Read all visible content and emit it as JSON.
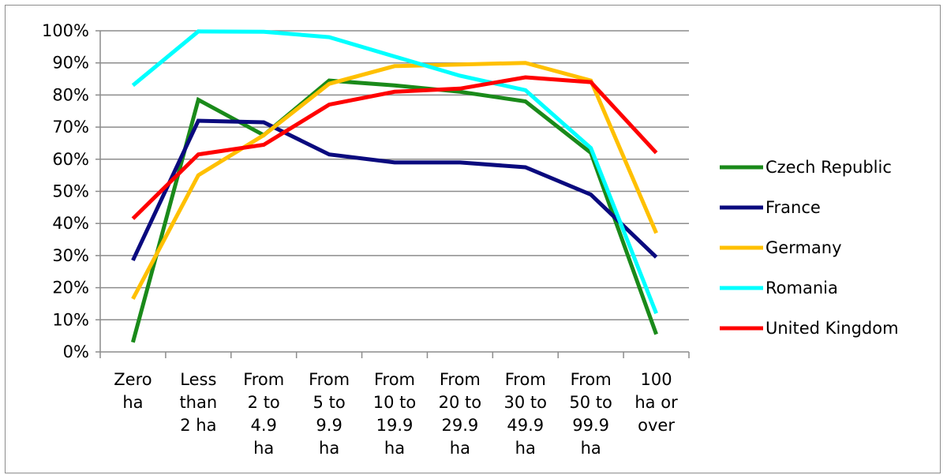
{
  "chart_data": {
    "type": "line",
    "title": "",
    "xlabel": "",
    "ylabel": "",
    "ylim": [
      0,
      1
    ],
    "y_ticks": [
      "0%",
      "10%",
      "20%",
      "30%",
      "40%",
      "50%",
      "60%",
      "70%",
      "80%",
      "90%",
      "100%"
    ],
    "grid": true,
    "legend_position": "right",
    "categories": [
      [
        "Zero",
        "ha"
      ],
      [
        "Less",
        "than",
        "2 ha"
      ],
      [
        "From",
        "2 to",
        "4.9",
        "ha"
      ],
      [
        "From",
        "5 to",
        "9.9",
        "ha"
      ],
      [
        "From",
        "10 to",
        "19.9",
        "ha"
      ],
      [
        "From",
        "20 to",
        "29.9",
        "ha"
      ],
      [
        "From",
        "30 to",
        "49.9",
        "ha"
      ],
      [
        "From",
        "50 to",
        "99.9",
        "ha"
      ],
      [
        "100",
        "ha or",
        "over"
      ]
    ],
    "series": [
      {
        "name": "Czech Republic",
        "color": "#1a8a1a",
        "values": [
          0.03,
          0.785,
          0.675,
          0.845,
          0.83,
          0.81,
          0.78,
          0.62,
          0.055
        ]
      },
      {
        "name": "France",
        "color": "#0a0a7e",
        "values": [
          0.285,
          0.72,
          0.715,
          0.615,
          0.59,
          0.59,
          0.575,
          0.49,
          0.295
        ]
      },
      {
        "name": "Germany",
        "color": "#ffc000",
        "values": [
          0.165,
          0.55,
          0.675,
          0.835,
          0.89,
          0.895,
          0.9,
          0.845,
          0.37
        ]
      },
      {
        "name": "Romania",
        "color": "#00ffff",
        "values": [
          0.83,
          0.998,
          0.997,
          0.98,
          0.92,
          0.86,
          0.815,
          0.635,
          0.12
        ]
      },
      {
        "name": "United Kingdom",
        "color": "#ff0000",
        "values": [
          0.415,
          0.615,
          0.645,
          0.77,
          0.81,
          0.82,
          0.855,
          0.84,
          0.62
        ]
      }
    ]
  }
}
